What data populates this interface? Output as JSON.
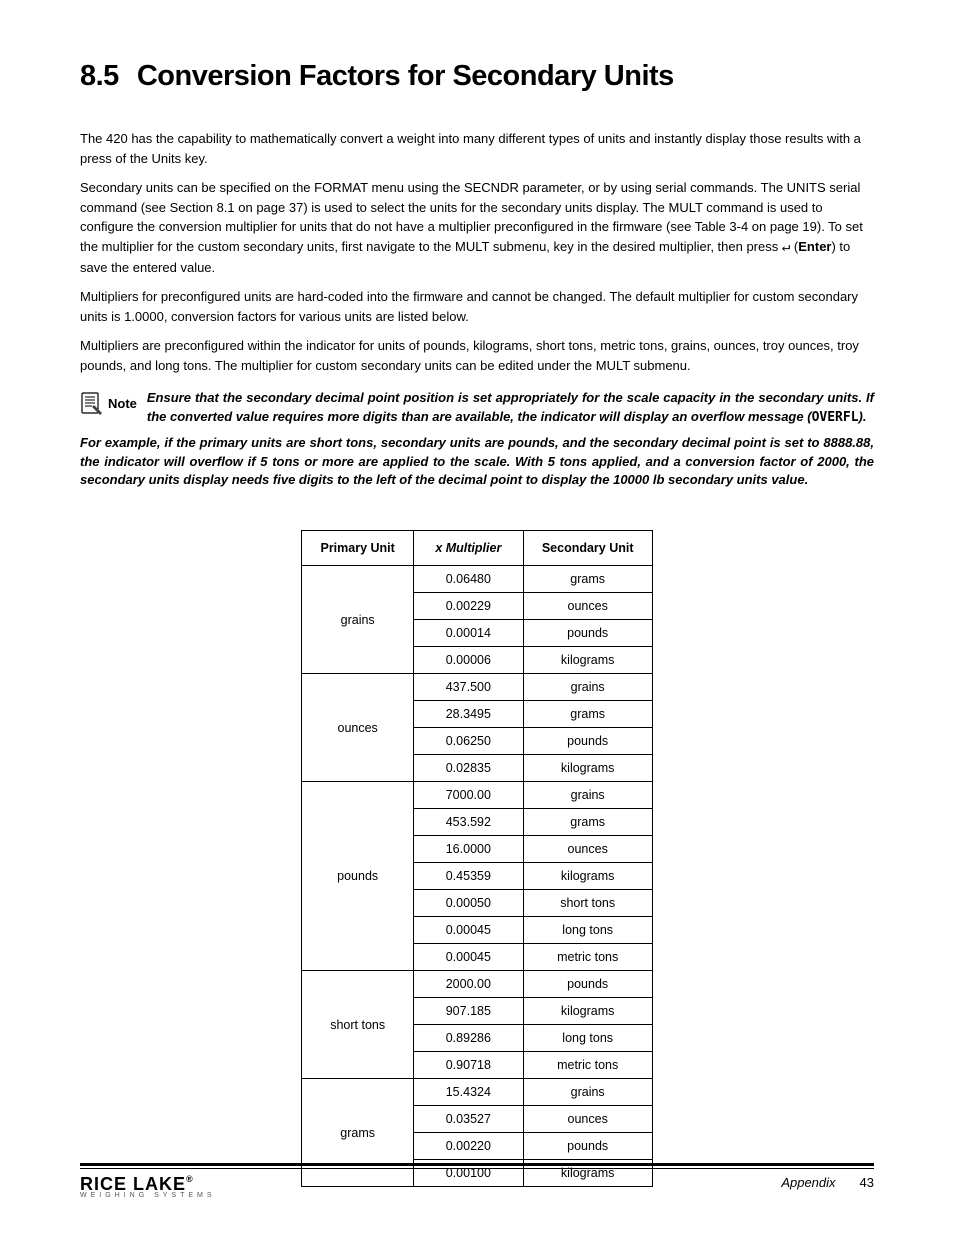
{
  "heading": {
    "number": "8.5",
    "title": "Conversion Factors for Secondary Units"
  },
  "intro": {
    "p1": "The 420 has the capability to mathematically convert a weight into many different types of units and instantly display those results with a press of the Units key.",
    "p2_a": "Secondary units can be specified on the FORMAT menu using the SECNDR parameter, or by using serial commands. The UNITS serial command (see ",
    "p2_link": "Section 8.1 on page 37",
    "p2_b": ") is used to select the units for the secondary units display. The MULT command is used to configure the conversion multiplier for units that do not have a multiplier preconfigured in the firmware (see ",
    "p2_tbl": "Table 3-4 on page 19",
    "p2_c": "). To set the multiplier for the custom secondary units, first navigate to the MULT submenu, key in the desired multiplier, then press ",
    "p2_d": " (",
    "p2_enter": "Enter",
    "p2_e": ") to save the entered value.",
    "p3": "Multipliers for preconfigured units are hard-coded into the firmware and cannot be changed. The default multiplier for custom secondary units is 1.0000, conversion factors for various units are listed below.",
    "p4": "Multipliers are preconfigured within the indicator for units of pounds, kilograms, short tons, metric tons, grains, ounces, troy ounces, troy pounds, and long tons. The multiplier for custom secondary units can be edited under the MULT submenu."
  },
  "note": {
    "label": "Note",
    "text_a": "Ensure that the secondary decimal point position is set appropriately for the scale capacity in the secondary units. If the converted value requires more digits than are available, the indicator will display an overflow message (",
    "text_code": "OVERFL",
    "text_b": ")."
  },
  "example": "For example, if the primary units are short tons, secondary units are pounds, and the secondary decimal point is set to 8888.88, the indicator will overflow if 5 tons or more are applied to the scale. With 5 tons applied, and a conversion factor of 2000, the secondary units display needs five digits to the left of the decimal point to display the 10000 lb secondary units value.",
  "table": {
    "columns": [
      "Primary Unit",
      "x Multiplier",
      "Secondary Unit"
    ],
    "groups": [
      {
        "primary": "grains",
        "rows": [
          {
            "mult": "0.06480",
            "sec": "grams"
          },
          {
            "mult": "0.00229",
            "sec": "ounces"
          },
          {
            "mult": "0.00014",
            "sec": "pounds"
          },
          {
            "mult": "0.00006",
            "sec": "kilograms"
          }
        ]
      },
      {
        "primary": "ounces",
        "rows": [
          {
            "mult": "437.500",
            "sec": "grains"
          },
          {
            "mult": "28.3495",
            "sec": "grams"
          },
          {
            "mult": "0.06250",
            "sec": "pounds"
          },
          {
            "mult": "0.02835",
            "sec": "kilograms"
          }
        ]
      },
      {
        "primary": "pounds",
        "rows": [
          {
            "mult": "7000.00",
            "sec": "grains"
          },
          {
            "mult": "453.592",
            "sec": "grams"
          },
          {
            "mult": "16.0000",
            "sec": "ounces"
          },
          {
            "mult": "0.45359",
            "sec": "kilograms"
          },
          {
            "mult": "0.00050",
            "sec": "short tons"
          },
          {
            "mult": "0.00045",
            "sec": "long tons"
          },
          {
            "mult": "0.00045",
            "sec": "metric tons"
          }
        ]
      },
      {
        "primary": "short tons",
        "rows": [
          {
            "mult": "2000.00",
            "sec": "pounds"
          },
          {
            "mult": "907.185",
            "sec": "kilograms"
          },
          {
            "mult": "0.89286",
            "sec": "long tons"
          },
          {
            "mult": "0.90718",
            "sec": "metric tons"
          }
        ]
      },
      {
        "primary": "grams",
        "rows": [
          {
            "mult": "15.4324",
            "sec": "grains"
          },
          {
            "mult": "0.03527",
            "sec": "ounces"
          },
          {
            "mult": "0.00220",
            "sec": "pounds"
          },
          {
            "mult": "0.00100",
            "sec": "kilograms"
          }
        ]
      }
    ]
  },
  "footer": {
    "brand_name": "RICE LAKE",
    "brand_sub": "WEIGHING SYSTEMS",
    "section": "Appendix",
    "page": "43"
  }
}
